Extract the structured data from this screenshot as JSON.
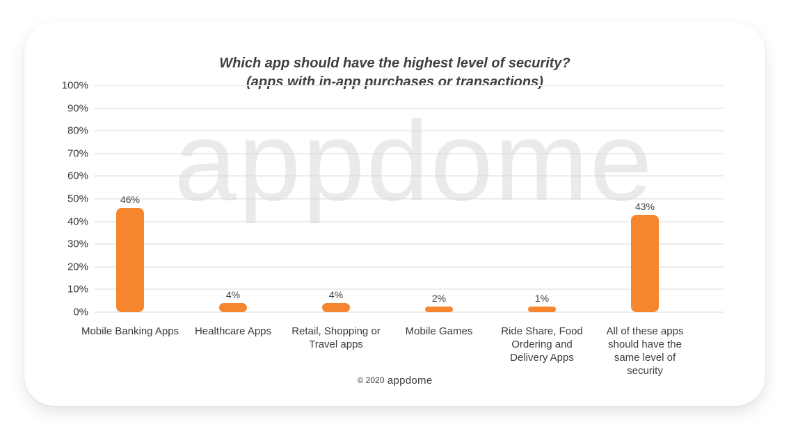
{
  "chart_data": {
    "type": "bar",
    "title": "Which app should have the highest level of security?",
    "subtitle": "(apps with in-app purchases or transactions)",
    "categories": [
      "Mobile Banking Apps",
      "Healthcare Apps",
      "Retail, Shopping or Travel apps",
      "Mobile Games",
      "Ride Share, Food Ordering and Delivery Apps",
      "All of these apps should have the same level of security"
    ],
    "values": [
      46,
      4,
      4,
      2,
      1,
      43
    ],
    "value_labels": [
      "46%",
      "4%",
      "4%",
      "2%",
      "1%",
      "43%"
    ],
    "xlabel": "",
    "ylabel": "",
    "ylim": [
      0,
      100
    ],
    "ytick_step": 10,
    "ytick_suffix": "%",
    "grid": true,
    "legend": false,
    "bar_color": "#F5852E",
    "gridline_color": "#ececec",
    "text_color": "#3b3b3b"
  },
  "watermark": {
    "text": "appdome"
  },
  "footer": {
    "copyright": "© 2020",
    "brand": "appdome"
  }
}
